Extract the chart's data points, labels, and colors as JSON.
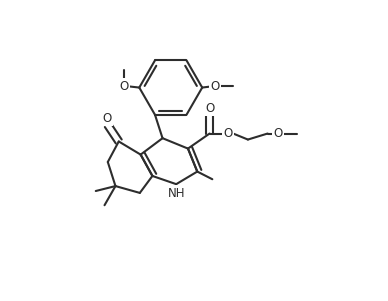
{
  "bg_color": "#ffffff",
  "line_color": "#2d2d2d",
  "line_width": 1.5,
  "font_size": 8.5,
  "figsize": [
    3.88,
    3.01
  ],
  "dpi": 100,
  "xlim": [
    -0.05,
    1.05
  ],
  "ylim": [
    -0.05,
    1.05
  ]
}
